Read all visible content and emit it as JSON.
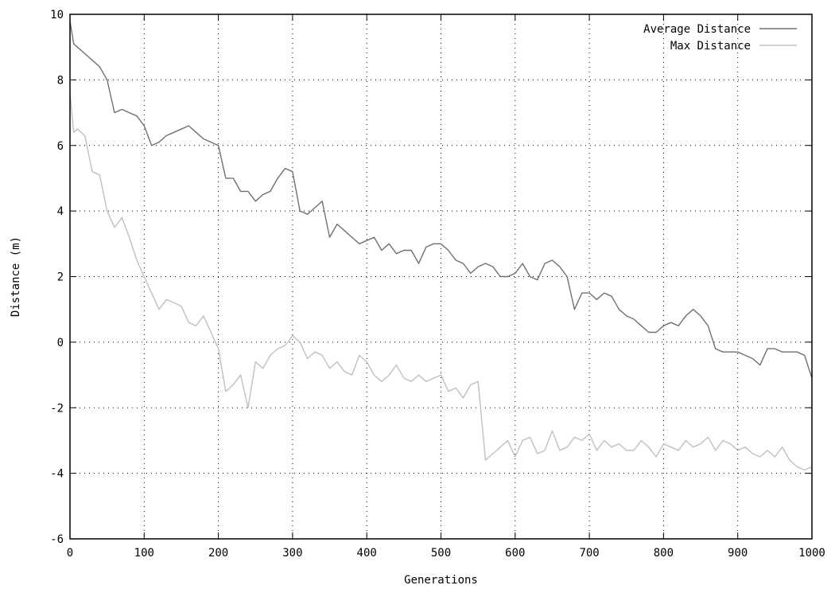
{
  "chart_data": {
    "type": "line",
    "title": "",
    "xlabel": "Generations",
    "ylabel": "Distance (m)",
    "xlim": [
      0,
      1000
    ],
    "ylim": [
      -6,
      10
    ],
    "x_ticks": [
      "0",
      "100",
      "200",
      "300",
      "400",
      "500",
      "600",
      "700",
      "800",
      "900",
      "1000"
    ],
    "y_ticks": [
      "-6",
      "-4",
      "-2",
      "0",
      "2",
      "4",
      "6",
      "8",
      "10"
    ],
    "grid": true,
    "legend_position": "top-right",
    "series": [
      {
        "name": "Average Distance",
        "color": "#707070",
        "x": [
          0,
          5,
          10,
          20,
          30,
          40,
          50,
          60,
          70,
          80,
          90,
          100,
          110,
          120,
          130,
          140,
          150,
          160,
          170,
          180,
          190,
          200,
          210,
          220,
          230,
          240,
          250,
          260,
          270,
          280,
          290,
          300,
          310,
          320,
          330,
          340,
          350,
          360,
          370,
          380,
          390,
          400,
          410,
          420,
          430,
          440,
          450,
          460,
          470,
          480,
          490,
          500,
          510,
          520,
          530,
          540,
          550,
          560,
          570,
          580,
          590,
          600,
          610,
          620,
          630,
          640,
          650,
          660,
          670,
          680,
          690,
          700,
          710,
          720,
          730,
          740,
          750,
          760,
          770,
          780,
          790,
          800,
          810,
          820,
          830,
          840,
          850,
          860,
          870,
          880,
          890,
          900,
          910,
          920,
          930,
          940,
          950,
          960,
          970,
          980,
          990,
          1000
        ],
        "y": [
          9.8,
          9.1,
          9.0,
          8.8,
          8.6,
          8.4,
          8.0,
          7.0,
          7.1,
          7.0,
          6.9,
          6.6,
          6.0,
          6.1,
          6.3,
          6.4,
          6.5,
          6.6,
          6.4,
          6.2,
          6.1,
          6.0,
          5.0,
          5.0,
          4.6,
          4.6,
          4.3,
          4.5,
          4.6,
          5.0,
          5.3,
          5.2,
          4.0,
          3.9,
          4.1,
          4.3,
          3.2,
          3.6,
          3.4,
          3.2,
          3.0,
          3.1,
          3.2,
          2.8,
          3.0,
          2.7,
          2.8,
          2.8,
          2.4,
          2.9,
          3.0,
          3.0,
          2.8,
          2.5,
          2.4,
          2.1,
          2.3,
          2.4,
          2.3,
          2.0,
          2.0,
          2.1,
          2.4,
          2.0,
          1.9,
          2.4,
          2.5,
          2.3,
          2.0,
          1.0,
          1.5,
          1.5,
          1.3,
          1.5,
          1.4,
          1.0,
          0.8,
          0.7,
          0.5,
          0.3,
          0.3,
          0.5,
          0.6,
          0.5,
          0.8,
          1.0,
          0.8,
          0.5,
          -0.2,
          -0.3,
          -0.3,
          -0.3,
          -0.4,
          -0.5,
          -0.7,
          -0.2,
          -0.2,
          -0.3,
          -0.3,
          -0.3,
          -0.4,
          -1.1
        ]
      },
      {
        "name": "Max Distance",
        "color": "#c0c0c0",
        "x": [
          0,
          5,
          10,
          20,
          30,
          40,
          50,
          60,
          70,
          80,
          90,
          100,
          110,
          120,
          130,
          140,
          150,
          160,
          170,
          180,
          190,
          200,
          210,
          220,
          230,
          240,
          250,
          260,
          270,
          280,
          290,
          300,
          310,
          320,
          330,
          340,
          350,
          360,
          370,
          380,
          390,
          400,
          410,
          420,
          430,
          440,
          450,
          460,
          470,
          480,
          490,
          500,
          510,
          520,
          530,
          540,
          550,
          560,
          570,
          580,
          590,
          600,
          610,
          620,
          630,
          640,
          650,
          660,
          670,
          680,
          690,
          700,
          710,
          720,
          730,
          740,
          750,
          760,
          770,
          780,
          790,
          800,
          810,
          820,
          830,
          840,
          850,
          860,
          870,
          880,
          890,
          900,
          910,
          920,
          930,
          940,
          950,
          960,
          970,
          980,
          990,
          1000
        ],
        "y": [
          7.6,
          6.4,
          6.5,
          6.3,
          5.2,
          5.1,
          4.0,
          3.5,
          3.8,
          3.2,
          2.5,
          2.0,
          1.5,
          1.0,
          1.3,
          1.2,
          1.1,
          0.6,
          0.5,
          0.8,
          0.3,
          -0.2,
          -1.5,
          -1.3,
          -1.0,
          -2.0,
          -0.6,
          -0.8,
          -0.4,
          -0.2,
          -0.1,
          0.2,
          0.0,
          -0.5,
          -0.3,
          -0.4,
          -0.8,
          -0.6,
          -0.9,
          -1.0,
          -0.4,
          -0.6,
          -1.0,
          -1.2,
          -1.0,
          -0.7,
          -1.1,
          -1.2,
          -1.0,
          -1.2,
          -1.1,
          -1.0,
          -1.5,
          -1.4,
          -1.7,
          -1.3,
          -1.2,
          -3.6,
          -3.4,
          -3.2,
          -3.0,
          -3.5,
          -3.0,
          -2.9,
          -3.4,
          -3.3,
          -2.7,
          -3.3,
          -3.2,
          -2.9,
          -3.0,
          -2.8,
          -3.3,
          -3.0,
          -3.2,
          -3.1,
          -3.3,
          -3.3,
          -3.0,
          -3.2,
          -3.5,
          -3.1,
          -3.2,
          -3.3,
          -3.0,
          -3.2,
          -3.1,
          -2.9,
          -3.3,
          -3.0,
          -3.1,
          -3.3,
          -3.2,
          -3.4,
          -3.5,
          -3.3,
          -3.5,
          -3.2,
          -3.6,
          -3.8,
          -3.9,
          -3.8
        ]
      }
    ]
  }
}
